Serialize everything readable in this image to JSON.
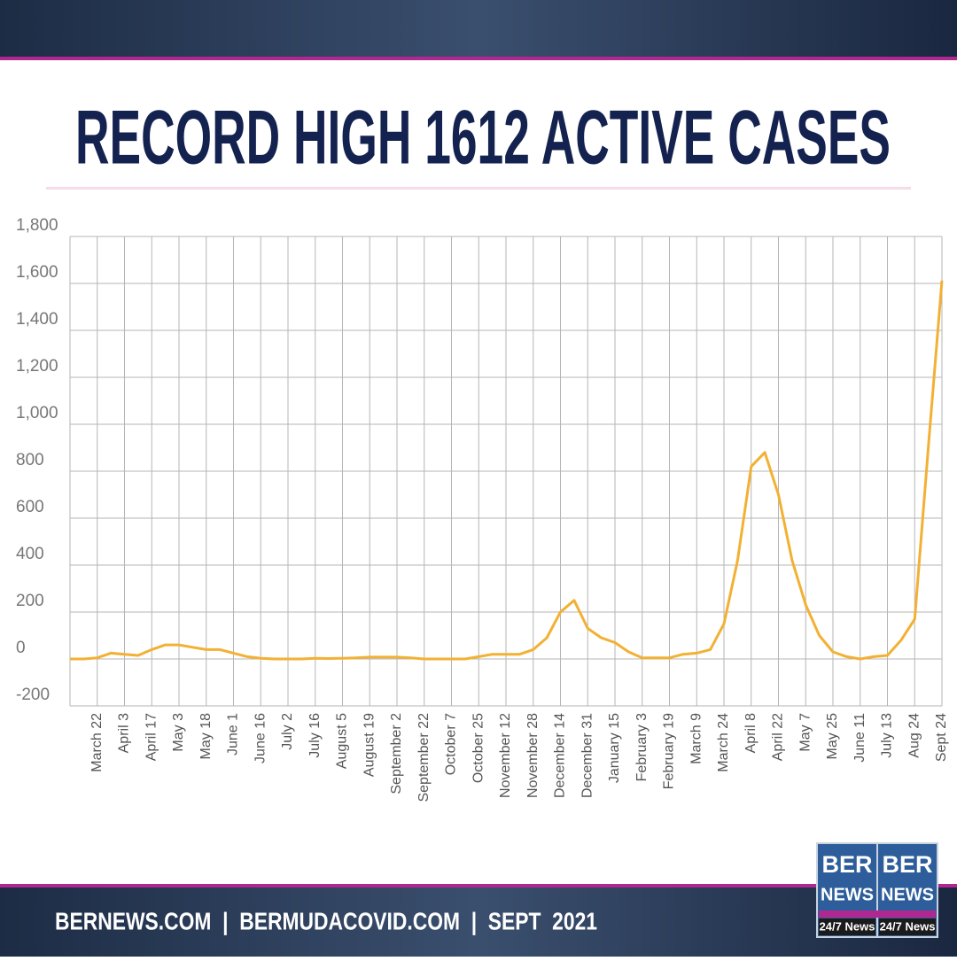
{
  "chart_data": {
    "type": "line",
    "title": "RECORD HIGH 1612 ACTIVE CASES",
    "categories": [
      null,
      null,
      "March 22",
      null,
      "April 3",
      null,
      "April 17",
      null,
      "May 3",
      null,
      "May 18",
      null,
      "June 1",
      null,
      "June 16",
      null,
      "July 2",
      null,
      "July 16",
      null,
      "August 5",
      null,
      "August 19",
      null,
      "September 2",
      null,
      "September 22",
      null,
      "October 7",
      null,
      "October 25",
      null,
      "November 12",
      null,
      "November 28",
      null,
      "December 14",
      null,
      "December 31",
      null,
      "January 15",
      null,
      "February 3",
      null,
      "February 19",
      null,
      "March 9",
      null,
      "March 24",
      null,
      "April 8",
      null,
      "April 22",
      null,
      "May 7",
      null,
      "May 25",
      null,
      "June 11",
      null,
      "July 13",
      null,
      "Aug 24",
      null,
      "Sept 24"
    ],
    "series": [
      {
        "name": "Active cases",
        "color": "#f2b134",
        "values": [
          0,
          0,
          5,
          25,
          20,
          15,
          40,
          60,
          60,
          50,
          40,
          40,
          25,
          10,
          3,
          0,
          0,
          0,
          3,
          2,
          3,
          5,
          8,
          8,
          8,
          5,
          0,
          0,
          0,
          0,
          10,
          20,
          20,
          20,
          40,
          90,
          200,
          250,
          130,
          90,
          70,
          30,
          5,
          5,
          5,
          20,
          25,
          40,
          150,
          420,
          820,
          880,
          700,
          420,
          230,
          100,
          30,
          10,
          0,
          10,
          15,
          80,
          170,
          900,
          1612
        ]
      }
    ],
    "ylim": [
      -200,
      1800
    ],
    "yticks": [
      -200,
      0,
      200,
      400,
      600,
      800,
      {
        "value": 1000,
        "label": "1,000"
      },
      {
        "value": 1200,
        "label": "1,200"
      },
      {
        "value": 1400,
        "label": "1,400"
      },
      {
        "value": 1600,
        "label": "1,600"
      },
      {
        "value": 1800,
        "label": "1,800"
      }
    ],
    "grid": true
  },
  "footer": {
    "text": "BERNEWS.COM  |  BERMUDACOVID.COM  |  SEPT  2021"
  },
  "logo": {
    "top": "BER",
    "bottom": "NEWS",
    "tag": "24/7 News"
  }
}
